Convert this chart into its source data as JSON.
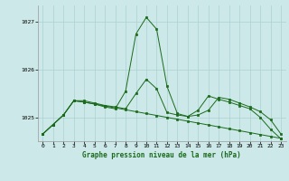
{
  "title": "Graphe pression niveau de la mer (hPa)",
  "background_color": "#cce8e8",
  "grid_color": "#aad0d0",
  "line_color": "#1a6b1a",
  "xlim": [
    -0.5,
    23.5
  ],
  "ylim": [
    1024.5,
    1027.35
  ],
  "yticks": [
    1025,
    1026,
    1027
  ],
  "xticks": [
    0,
    1,
    2,
    3,
    4,
    5,
    6,
    7,
    8,
    9,
    10,
    11,
    12,
    13,
    14,
    15,
    16,
    17,
    18,
    19,
    20,
    21,
    22,
    23
  ],
  "series": [
    [
      1024.65,
      1024.85,
      1025.05,
      1025.35,
      1025.32,
      1025.28,
      1025.24,
      1025.2,
      1025.16,
      1025.12,
      1025.08,
      1025.04,
      1025.0,
      1024.96,
      1024.92,
      1024.88,
      1024.84,
      1024.8,
      1024.76,
      1024.72,
      1024.68,
      1024.64,
      1024.6,
      1024.56
    ],
    [
      1024.65,
      1024.85,
      1025.05,
      1025.35,
      1025.35,
      1025.3,
      1025.25,
      1025.22,
      1025.18,
      1025.5,
      1025.8,
      1025.6,
      1025.1,
      1025.05,
      1025.02,
      1025.15,
      1025.45,
      1025.38,
      1025.32,
      1025.25,
      1025.18,
      1025.0,
      1024.75,
      1024.55
    ],
    [
      1024.65,
      1024.85,
      1025.05,
      1025.35,
      1025.32,
      1025.28,
      1025.22,
      1025.18,
      1025.55,
      1026.75,
      1027.1,
      1026.85,
      1025.65,
      1025.08,
      1025.02,
      1025.05,
      1025.15,
      1025.42,
      1025.38,
      1025.3,
      1025.22,
      1025.12,
      1024.95,
      1024.65
    ]
  ]
}
